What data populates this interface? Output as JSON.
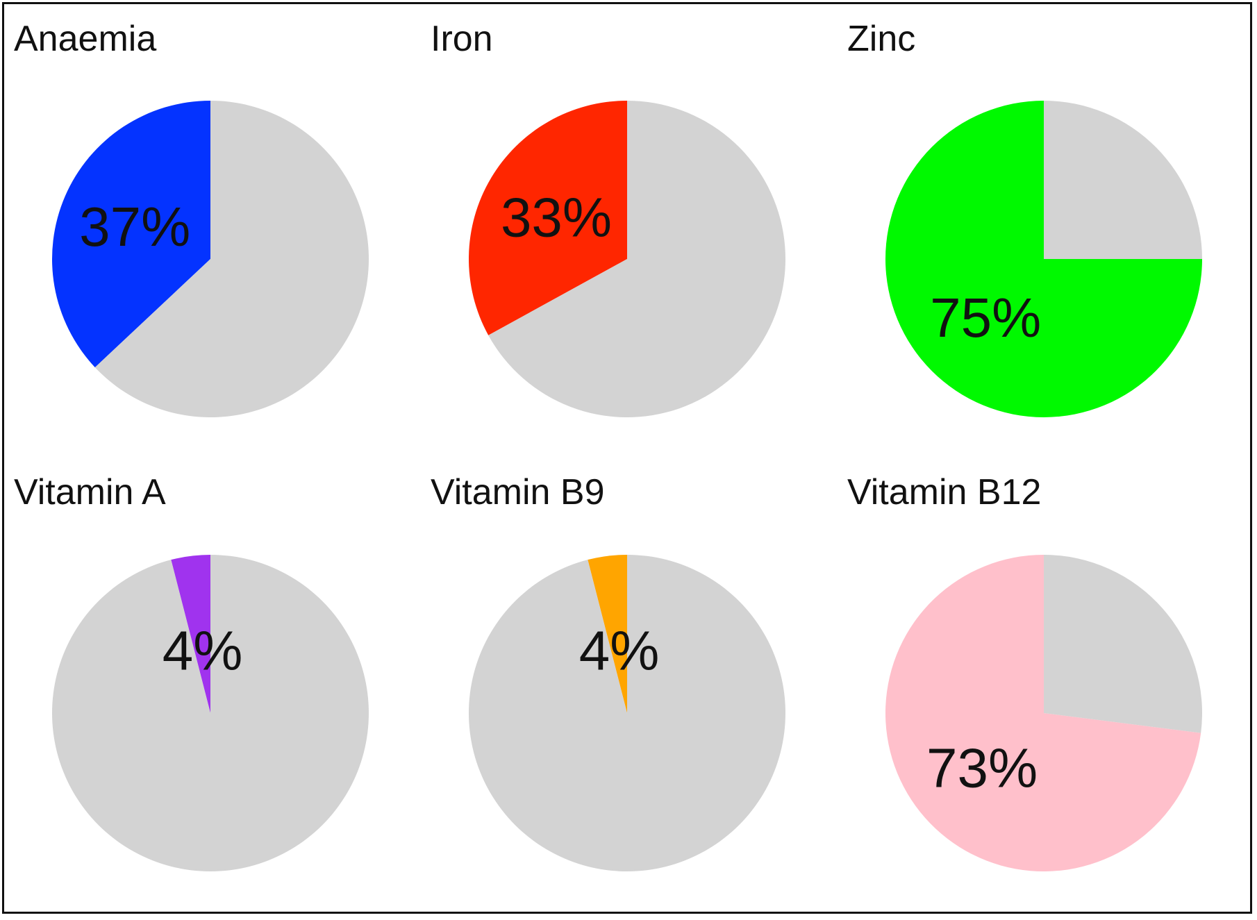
{
  "chart_data": [
    {
      "type": "pie",
      "title": "Anaemia",
      "slices": [
        {
          "value": 37,
          "color": "#0433ff",
          "label": "37%"
        },
        {
          "value": 63,
          "color": "#d3d3d3"
        }
      ]
    },
    {
      "type": "pie",
      "title": "Iron",
      "slices": [
        {
          "value": 33,
          "color": "#ff2600",
          "label": "33%"
        },
        {
          "value": 67,
          "color": "#d3d3d3"
        }
      ]
    },
    {
      "type": "pie",
      "title": "Zinc",
      "slices": [
        {
          "value": 75,
          "color": "#00f900",
          "label": "75%"
        },
        {
          "value": 25,
          "color": "#d3d3d3"
        }
      ]
    },
    {
      "type": "pie",
      "title": "Vitamin A",
      "slices": [
        {
          "value": 4,
          "color": "#a033ee",
          "label": "4%"
        },
        {
          "value": 96,
          "color": "#d3d3d3"
        }
      ]
    },
    {
      "type": "pie",
      "title": "Vitamin B9",
      "slices": [
        {
          "value": 4,
          "color": "#ffa500",
          "label": "4%"
        },
        {
          "value": 96,
          "color": "#d3d3d3"
        }
      ]
    },
    {
      "type": "pie",
      "title": "Vitamin B12",
      "slices": [
        {
          "value": 73,
          "color": "#ffc0cb",
          "label": "73%"
        },
        {
          "value": 27,
          "color": "#d3d3d3"
        }
      ]
    }
  ]
}
